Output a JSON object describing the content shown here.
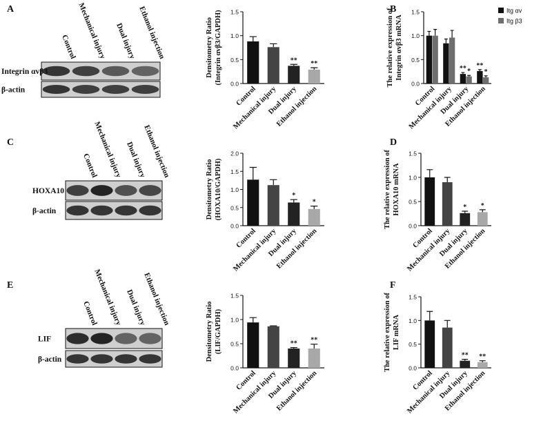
{
  "panel_letters": [
    "A",
    "B",
    "C",
    "D",
    "E",
    "F"
  ],
  "blots": [
    {
      "lanes": [
        "Control",
        "Mechanical injury",
        "Dual injury",
        "Ethanol injection"
      ],
      "rows": [
        "Integrin αvβ3",
        "β-actin"
      ]
    },
    {
      "lanes": [
        "Control",
        "Mechanical injury",
        "Dual injury",
        "Ethanol injection"
      ],
      "rows": [
        "HOXA10",
        "β-actin"
      ]
    },
    {
      "lanes": [
        "Control",
        "Mechanical injury",
        "Dual injury",
        "Ethanol injection"
      ],
      "rows": [
        "LIF",
        "β-actin"
      ]
    }
  ],
  "chart_data": [
    {
      "type": "bar",
      "ylabel": [
        "Densitometry Ratio",
        "(Integrin αvβ3/GAPDH)"
      ],
      "categories": [
        "Control",
        "Mechanical injury",
        "Dual injury",
        "Ethanol injection"
      ],
      "values": [
        0.88,
        0.76,
        0.37,
        0.29
      ],
      "errors": [
        0.1,
        0.07,
        0.03,
        0.04
      ],
      "annotations": [
        null,
        null,
        "**",
        "**"
      ],
      "colors": [
        "#111111",
        "#444444",
        "#222222",
        "#a8a8a8"
      ],
      "ylim": [
        0,
        1.5
      ],
      "yticks": [
        {
          "value": 0,
          "label": "0.0"
        },
        {
          "value": 0.5,
          "label": "0.5"
        },
        {
          "value": 1,
          "label": "1.0"
        },
        {
          "value": 1.5,
          "label": "1.5"
        }
      ]
    },
    {
      "type": "grouped-bar",
      "ylabel": [
        "The relative expression of",
        "Integrin αvβ3 mRNA"
      ],
      "categories": [
        "Control",
        "Mechanical injury",
        "Dual injury",
        "Ethanol injection"
      ],
      "series": [
        {
          "name": "Itg αv",
          "color": "#111111",
          "values": [
            1.0,
            0.84,
            0.2,
            0.26
          ],
          "errors": [
            0.09,
            0.09,
            0.03,
            0.03
          ],
          "annotations": [
            null,
            null,
            "**",
            "**"
          ]
        },
        {
          "name": "Itg β3",
          "color": "#6e6e6e",
          "values": [
            1.0,
            0.96,
            0.15,
            0.13
          ],
          "errors": [
            0.13,
            0.15,
            0.02,
            0.03
          ],
          "annotations": [
            null,
            null,
            "*",
            "*"
          ]
        }
      ],
      "legend": "upper right",
      "ylim": [
        0,
        1.5
      ],
      "yticks": [
        {
          "value": 0,
          "label": "0.0"
        },
        {
          "value": 0.5,
          "label": "0.5"
        },
        {
          "value": 1,
          "label": "1.0"
        },
        {
          "value": 1.5,
          "label": "1.5"
        }
      ]
    },
    {
      "type": "bar",
      "ylabel": [
        "Densitometry Ratio",
        "(HOXA10/GAPDH)"
      ],
      "categories": [
        "Control",
        "Mechanical injury",
        "Dual injury",
        "Ethanol injection"
      ],
      "values": [
        1.27,
        1.12,
        0.64,
        0.46
      ],
      "errors": [
        0.34,
        0.15,
        0.08,
        0.08
      ],
      "annotations": [
        null,
        null,
        "*",
        "*"
      ],
      "colors": [
        "#111111",
        "#444444",
        "#222222",
        "#a8a8a8"
      ],
      "ylim": [
        0,
        2
      ],
      "yticks": [
        {
          "value": 0,
          "label": "0.0"
        },
        {
          "value": 0.5,
          "label": "0.5"
        },
        {
          "value": 1,
          "label": "1.0"
        },
        {
          "value": 1.5,
          "label": "1.5"
        },
        {
          "value": 2,
          "label": "2.0"
        }
      ]
    },
    {
      "type": "bar",
      "ylabel": [
        "The relative expression of",
        "HOXA10 mRNA"
      ],
      "categories": [
        "Control",
        "Mechanical injury",
        "Dual injury",
        "Ethanol injection"
      ],
      "values": [
        1.0,
        0.9,
        0.26,
        0.28
      ],
      "errors": [
        0.16,
        0.1,
        0.04,
        0.05
      ],
      "annotations": [
        null,
        null,
        "*",
        "*"
      ],
      "colors": [
        "#111111",
        "#444444",
        "#222222",
        "#a8a8a8"
      ],
      "ylim": [
        0,
        1.5
      ],
      "yticks": [
        {
          "value": 0,
          "label": "0.0"
        },
        {
          "value": 0.5,
          "label": "0.5"
        },
        {
          "value": 1,
          "label": "1.0"
        },
        {
          "value": 1.5,
          "label": "1.5"
        }
      ]
    },
    {
      "type": "bar",
      "ylabel": [
        "Densitometry Ratio",
        "(LIF/GAPDH)"
      ],
      "categories": [
        "Control",
        "Mechanical injury",
        "Dual injury",
        "Ethanol injection"
      ],
      "values": [
        0.94,
        0.86,
        0.4,
        0.4
      ],
      "errors": [
        0.1,
        0.01,
        0.02,
        0.09
      ],
      "annotations": [
        null,
        null,
        "**",
        "**"
      ],
      "colors": [
        "#111111",
        "#444444",
        "#222222",
        "#a8a8a8"
      ],
      "ylim": [
        0,
        1.5
      ],
      "yticks": [
        {
          "value": 0,
          "label": "0.0"
        },
        {
          "value": 0.5,
          "label": "0.5"
        },
        {
          "value": 1,
          "label": "1.0"
        },
        {
          "value": 1.5,
          "label": "1.5"
        }
      ]
    },
    {
      "type": "bar",
      "ylabel": [
        "The relative expression of",
        "LIF mRNA"
      ],
      "categories": [
        "Control",
        "Mechanical injury",
        "Dual injury",
        "Ethanol injection"
      ],
      "values": [
        1.0,
        0.85,
        0.15,
        0.12
      ],
      "errors": [
        0.19,
        0.15,
        0.03,
        0.03
      ],
      "annotations": [
        null,
        null,
        "**",
        "**"
      ],
      "colors": [
        "#111111",
        "#444444",
        "#222222",
        "#a8a8a8"
      ],
      "ylim": [
        0,
        1.5
      ],
      "yticks": [
        {
          "value": 0,
          "label": "0.0"
        },
        {
          "value": 0.5,
          "label": "0.5"
        },
        {
          "value": 1,
          "label": "1.0"
        },
        {
          "value": 1.5,
          "label": "1.5"
        }
      ]
    }
  ]
}
